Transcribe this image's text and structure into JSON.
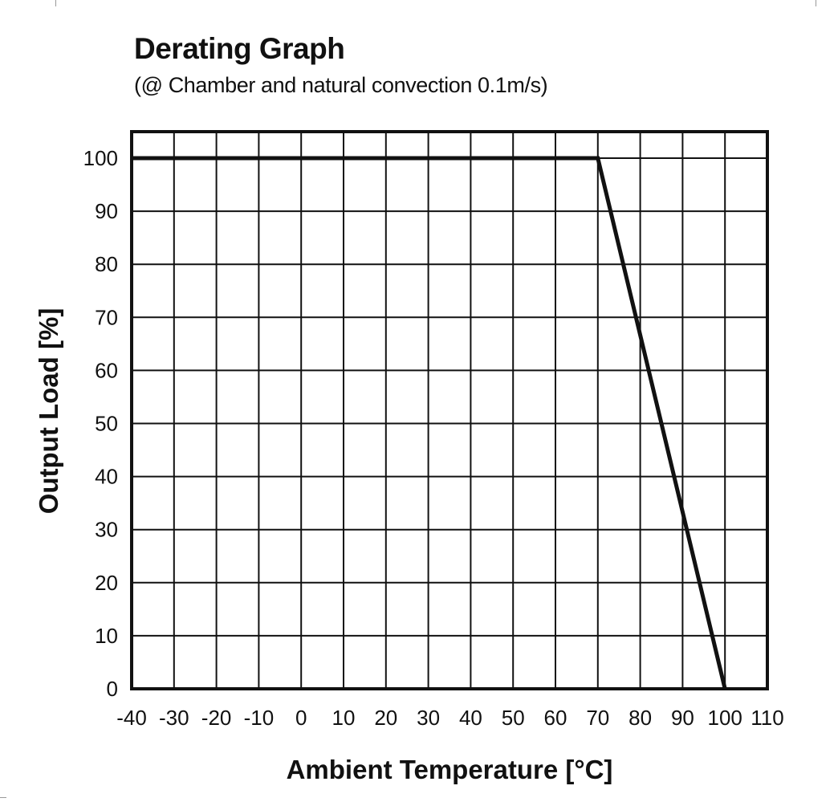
{
  "chart_data": {
    "type": "line",
    "title": "Derating Graph",
    "subtitle": "(@ Chamber and natural convection 0.1m/s)",
    "xlabel": "Ambient Temperature [°C]",
    "ylabel": "Output Load [%]",
    "xlim": [
      -40,
      110
    ],
    "ylim": [
      0,
      105
    ],
    "x_ticks": [
      -40,
      -30,
      -20,
      -10,
      0,
      10,
      20,
      30,
      40,
      50,
      60,
      70,
      80,
      90,
      100,
      110
    ],
    "y_ticks": [
      0,
      10,
      20,
      30,
      40,
      50,
      60,
      70,
      80,
      90,
      100
    ],
    "grid": true,
    "series": [
      {
        "x": [
          -40,
          70,
          100
        ],
        "y": [
          100,
          100,
          0
        ]
      }
    ]
  }
}
